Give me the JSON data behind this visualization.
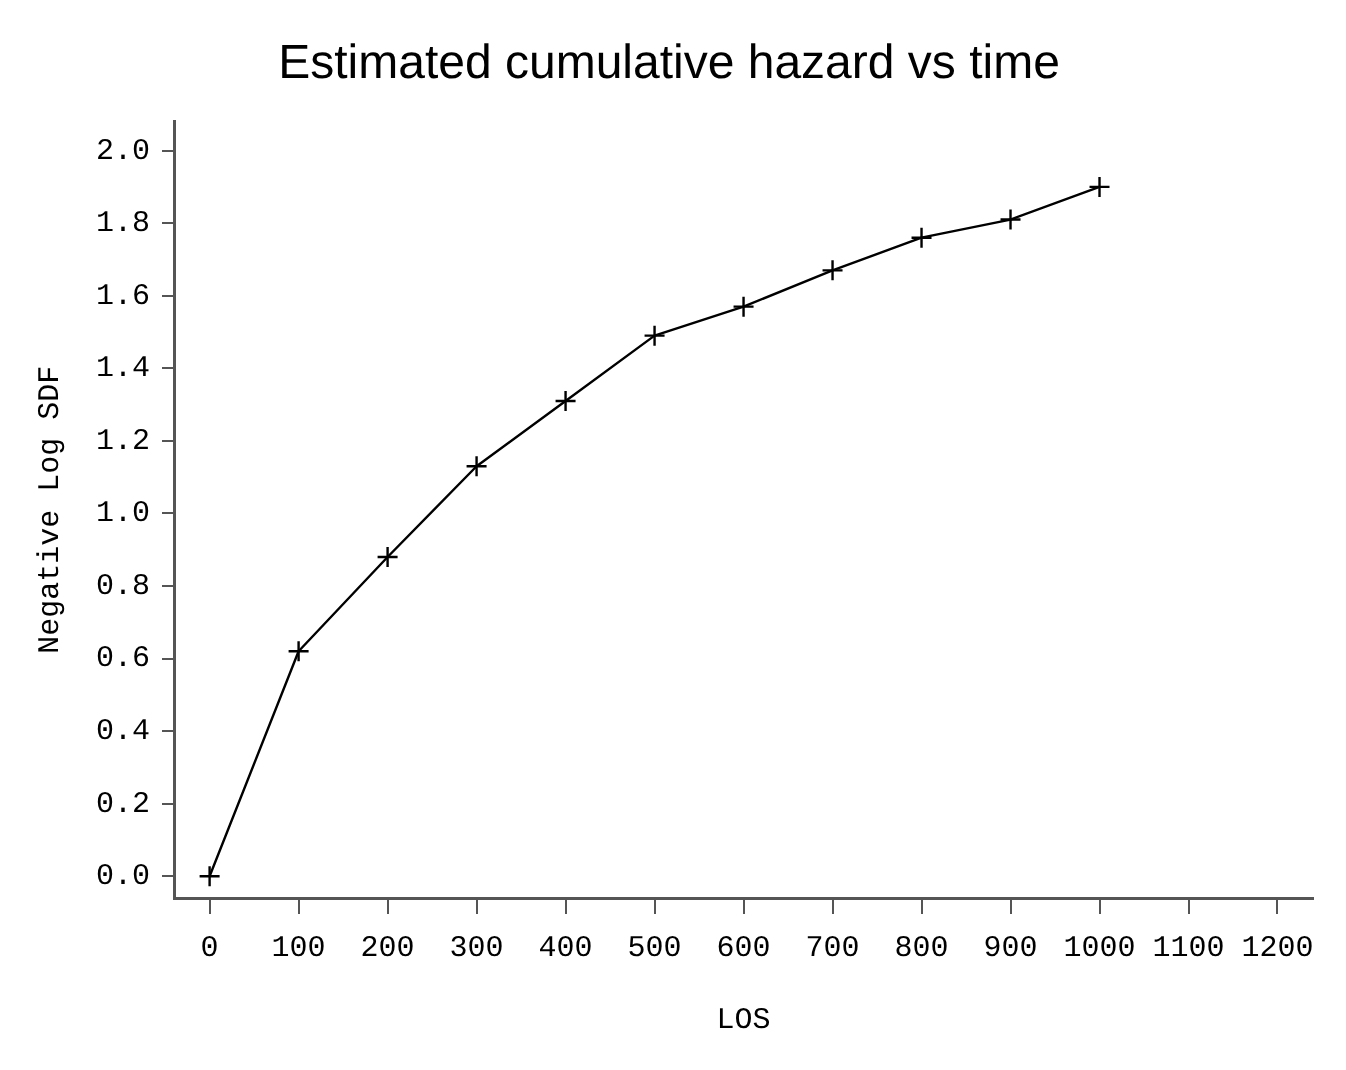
{
  "chart_data": {
    "type": "line",
    "title": "Estimated cumulative hazard vs time",
    "xlabel": "LOS",
    "ylabel": "Negative Log SDF",
    "x": [
      0,
      100,
      200,
      300,
      400,
      500,
      600,
      700,
      800,
      900,
      1000
    ],
    "series": [
      {
        "color": "#000000",
        "values": [
          0.0,
          0.62,
          0.88,
          1.13,
          1.31,
          1.49,
          1.57,
          1.67,
          1.76,
          1.81,
          1.9
        ]
      }
    ],
    "xlim": [
      -40,
      1240
    ],
    "xticks": [
      0,
      100,
      200,
      300,
      400,
      500,
      600,
      700,
      800,
      900,
      1000,
      1100,
      1200
    ],
    "ylim": [
      -0.06,
      2.08
    ],
    "yticks": [
      {
        "value": 0,
        "label": "0.0"
      },
      {
        "value": 0.2,
        "label": "0.2"
      },
      {
        "value": 0.4,
        "label": "0.4"
      },
      {
        "value": 0.6,
        "label": "0.6"
      },
      {
        "value": 0.8,
        "label": "0.8"
      },
      {
        "value": 1,
        "label": "1.0"
      },
      {
        "value": 1.2,
        "label": "1.2"
      },
      {
        "value": 1.4,
        "label": "1.4"
      },
      {
        "value": 1.6,
        "label": "1.6"
      },
      {
        "value": 1.8,
        "label": "1.8"
      },
      {
        "value": 2,
        "label": "2.0"
      }
    ],
    "grid": false,
    "legend": false,
    "marker": "cross",
    "line_style": "solid"
  }
}
